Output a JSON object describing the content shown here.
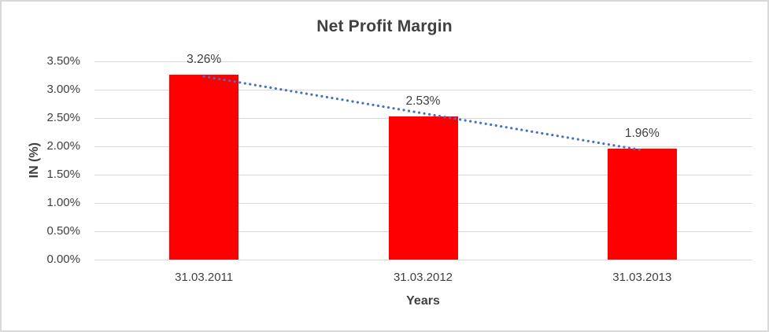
{
  "chart_data": {
    "type": "bar",
    "title": "Net Profit Margin",
    "xlabel": "Years",
    "ylabel": "IN (%)",
    "categories": [
      "31.03.2011",
      "31.03.2012",
      "31.03.2013"
    ],
    "values": [
      3.26,
      2.53,
      1.96
    ],
    "data_labels": [
      "3.26%",
      "2.53%",
      "1.96%"
    ],
    "ylim": [
      0,
      3.5
    ],
    "ytick_step": 0.5,
    "ytick_labels": [
      "0.00%",
      "0.50%",
      "1.00%",
      "1.50%",
      "2.00%",
      "2.50%",
      "3.00%",
      "3.50%"
    ],
    "grid": true,
    "legend": "none",
    "bar_color": "#FF0000",
    "trendline": {
      "type": "linear",
      "style": "dotted",
      "color": "#4472C4"
    },
    "colors": {
      "text": "#404040",
      "gridline": "#D9D9D9",
      "border": "#D9D9D9",
      "background": "#FFFFFF"
    }
  }
}
